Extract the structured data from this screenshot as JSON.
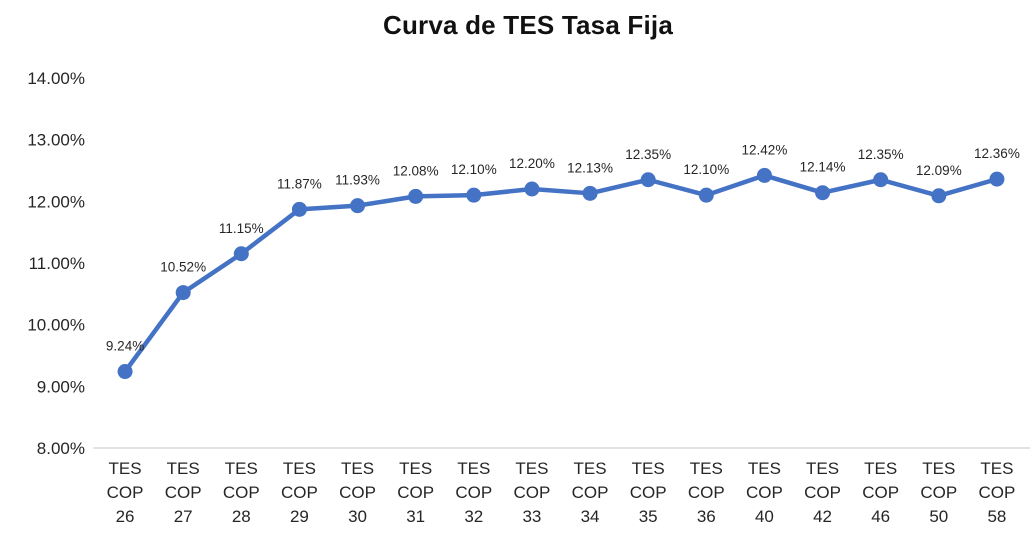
{
  "chart_data": {
    "type": "line",
    "title": "Curva de TES Tasa Fija",
    "categories": [
      "TES COP 26",
      "TES COP 27",
      "TES COP 28",
      "TES COP 29",
      "TES COP 30",
      "TES COP 31",
      "TES COP 32",
      "TES COP 33",
      "TES COP 34",
      "TES COP 35",
      "TES COP 36",
      "TES COP 40",
      "TES COP 42",
      "TES COP 46",
      "TES COP 50",
      "TES COP 58"
    ],
    "values": [
      9.24,
      10.52,
      11.15,
      11.87,
      11.93,
      12.08,
      12.1,
      12.2,
      12.13,
      12.35,
      12.1,
      12.42,
      12.14,
      12.35,
      12.09,
      12.36
    ],
    "data_labels": [
      "9.24%",
      "10.52%",
      "11.15%",
      "11.87%",
      "11.93%",
      "12.08%",
      "12.10%",
      "12.20%",
      "12.13%",
      "12.35%",
      "12.10%",
      "12.42%",
      "12.14%",
      "12.35%",
      "12.09%",
      "12.36%"
    ],
    "y_axis": {
      "min": 8,
      "max": 14,
      "ticks": [
        {
          "label": "8.00%",
          "value": 8
        },
        {
          "label": "9.00%",
          "value": 9
        },
        {
          "label": "10.00%",
          "value": 10
        },
        {
          "label": "11.00%",
          "value": 11
        },
        {
          "label": "12.00%",
          "value": 12
        },
        {
          "label": "13.00%",
          "value": 13
        },
        {
          "label": "14.00%",
          "value": 14
        }
      ]
    },
    "xlabel": "",
    "ylabel": "",
    "grid": false,
    "legend": "none",
    "colors": {
      "series": "#4472C4",
      "axis_line": "#D9D9D9",
      "text": "#262626",
      "title": "#111111"
    }
  }
}
